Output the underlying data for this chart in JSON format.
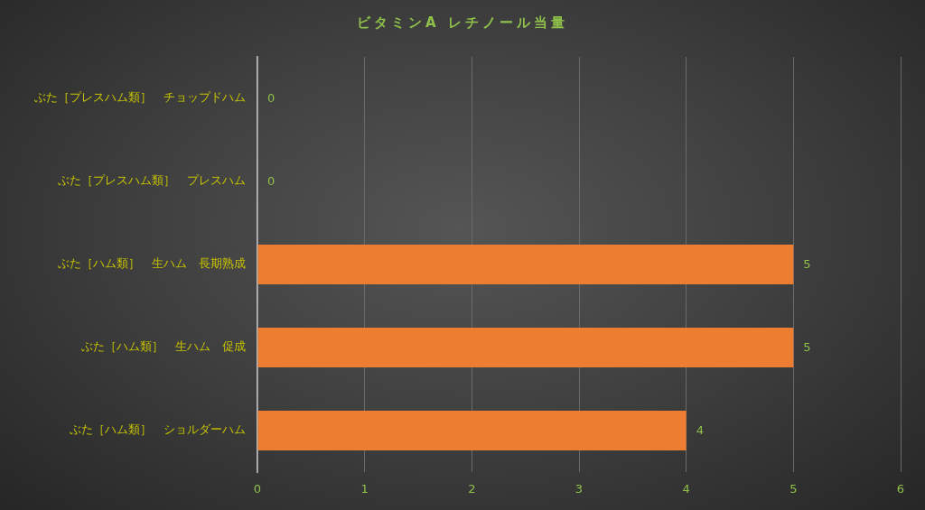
{
  "chart_data": {
    "type": "bar",
    "orientation": "horizontal",
    "title": "ビタミンA レチノール当量",
    "categories": [
      "ぶた［プレスハム類］　チョップドハム",
      "ぶた［プレスハム類］　プレスハム",
      "ぶた［ハム類］　生ハム　長期熟成",
      "ぶた［ハム類］　生ハム　促成",
      "ぶた［ハム類］　ショルダーハム"
    ],
    "values": [
      0,
      0,
      5,
      5,
      4
    ],
    "color": "#ed7d31",
    "xlim": [
      0,
      6
    ],
    "xticks": [
      0,
      1,
      2,
      3,
      4,
      5,
      6
    ],
    "grid": "x",
    "data_labels": true
  }
}
